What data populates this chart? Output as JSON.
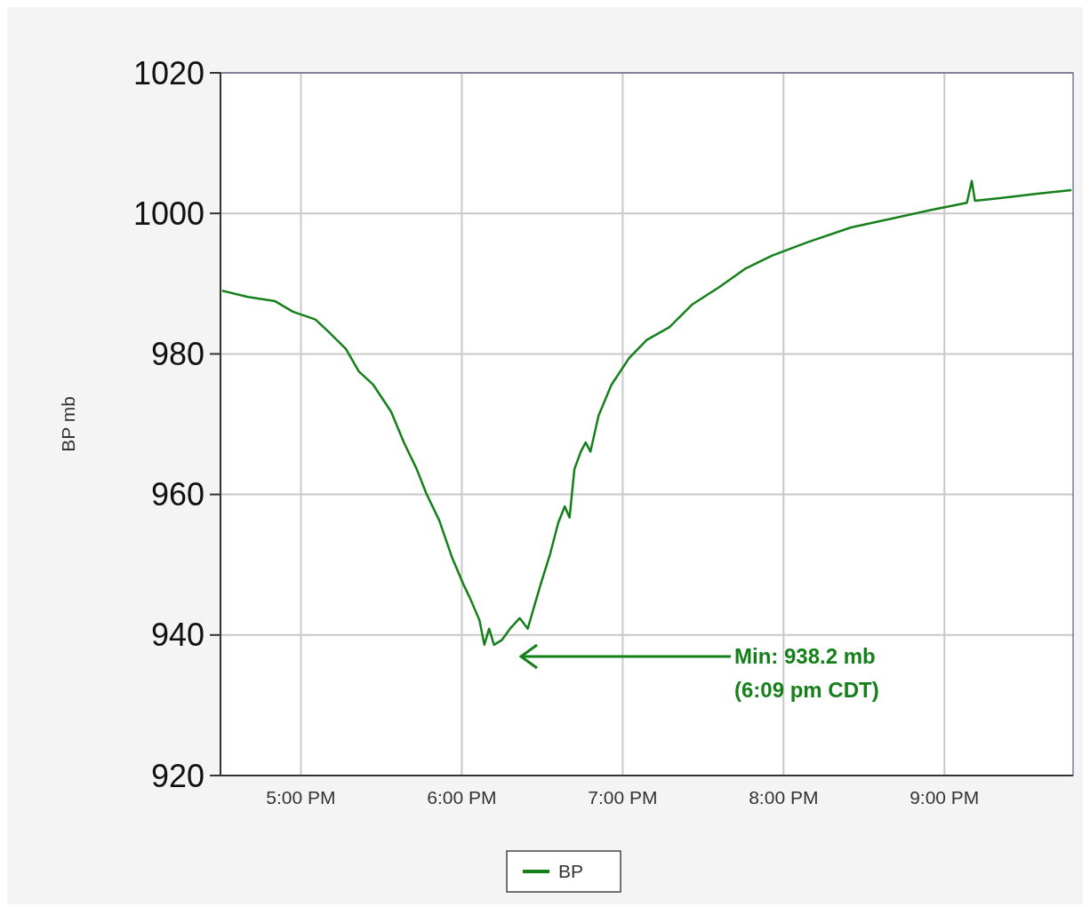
{
  "chart_data": {
    "type": "line",
    "ylabel": "BP mb",
    "xlim": [
      16.5,
      21.8
    ],
    "ylim": [
      920,
      1020
    ],
    "xticks": [
      {
        "value": 17,
        "label": "5:00 PM"
      },
      {
        "value": 18,
        "label": "6:00 PM"
      },
      {
        "value": 19,
        "label": "7:00 PM"
      },
      {
        "value": 20,
        "label": "8:00 PM"
      },
      {
        "value": 21,
        "label": "9:00 PM"
      }
    ],
    "yticks": [
      920,
      940,
      960,
      980,
      1000,
      1020
    ],
    "grid": true,
    "legend": "bottom",
    "marker": "none",
    "line_style": "solid",
    "annotations": [
      "Min: 938.2 mb\n(6:09 pm CDT)"
    ],
    "series": [
      {
        "name": "BP",
        "color": "#15801a",
        "x": [
          16.51,
          16.67,
          16.84,
          16.95,
          17.09,
          17.17,
          17.28,
          17.36,
          17.45,
          17.56,
          17.64,
          17.72,
          17.78,
          17.86,
          17.94,
          18.01,
          18.05,
          18.11,
          18.14,
          18.17,
          18.2,
          18.25,
          18.3,
          18.36,
          18.41,
          18.49,
          18.55,
          18.6,
          18.64,
          18.67,
          18.7,
          18.74,
          18.77,
          18.8,
          18.85,
          18.93,
          19.04,
          19.15,
          19.29,
          19.43,
          19.6,
          19.76,
          19.93,
          20.15,
          20.42,
          20.7,
          20.92,
          21.14,
          21.17,
          21.19,
          21.36,
          21.58,
          21.79
        ],
        "values": [
          989.0,
          988.1,
          987.5,
          986.0,
          984.9,
          983.2,
          980.7,
          977.5,
          975.6,
          971.8,
          967.4,
          963.6,
          960.1,
          956.3,
          951.0,
          947.2,
          945.3,
          942.1,
          938.6,
          940.9,
          938.6,
          939.3,
          940.9,
          942.4,
          940.9,
          947.2,
          951.6,
          956.0,
          958.3,
          956.7,
          963.6,
          966.1,
          967.4,
          966.1,
          971.2,
          975.6,
          979.4,
          982.0,
          983.8,
          987.0,
          989.5,
          992.1,
          994.0,
          995.9,
          998.0,
          999.4,
          1000.5,
          1001.5,
          1004.6,
          1001.8,
          1002.2,
          1002.8,
          1003.3
        ]
      }
    ]
  }
}
